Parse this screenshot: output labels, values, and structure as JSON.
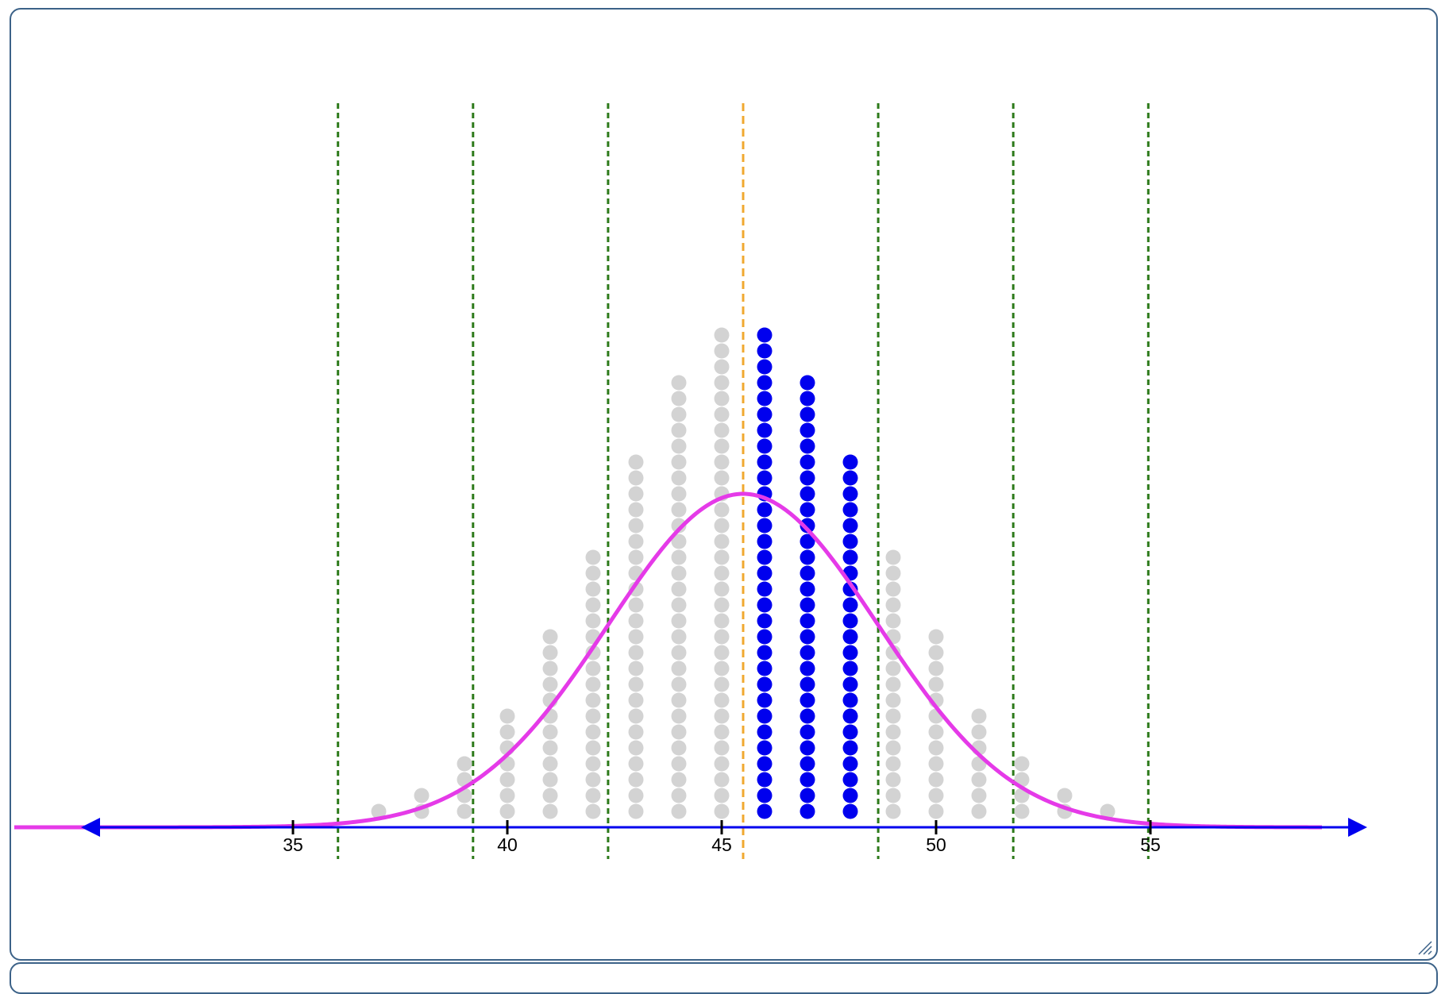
{
  "chart_data": {
    "type": "scatter",
    "subtype": "dot-plot-with-normal-curve",
    "title": "",
    "xlabel": "",
    "ylabel": "",
    "xlim": [
      28.5,
      59
    ],
    "x_ticks": [
      35,
      40,
      45,
      50,
      55
    ],
    "x_tick_labels": [
      "35",
      "40",
      "45",
      "50",
      "55"
    ],
    "grid": false,
    "legend": "none",
    "dot_stacks": {
      "x": [
        37,
        38,
        39,
        40,
        41,
        42,
        43,
        44,
        45,
        46,
        47,
        48,
        49,
        50,
        51,
        52,
        53,
        54
      ],
      "counts": [
        1,
        2,
        4,
        7,
        12,
        17,
        23,
        28,
        31,
        31,
        28,
        23,
        17,
        12,
        7,
        4,
        2,
        1
      ],
      "highlighted_x": [
        46,
        47,
        48
      ]
    },
    "normal_curve": {
      "mean": 45.5,
      "sd": 3.15
    },
    "mean_line": 45.5,
    "sd_lines": [
      36.05,
      39.2,
      42.35,
      48.65,
      51.8,
      54.95
    ],
    "colors": {
      "dot": "#d3d3d3",
      "highlight_dot": "#0000ee",
      "curve": "#e53ae8",
      "axis": "#0000ee",
      "mean_line": "#f0a830",
      "sd_line": "#2d7a1a",
      "frame": "#3c6288"
    }
  }
}
